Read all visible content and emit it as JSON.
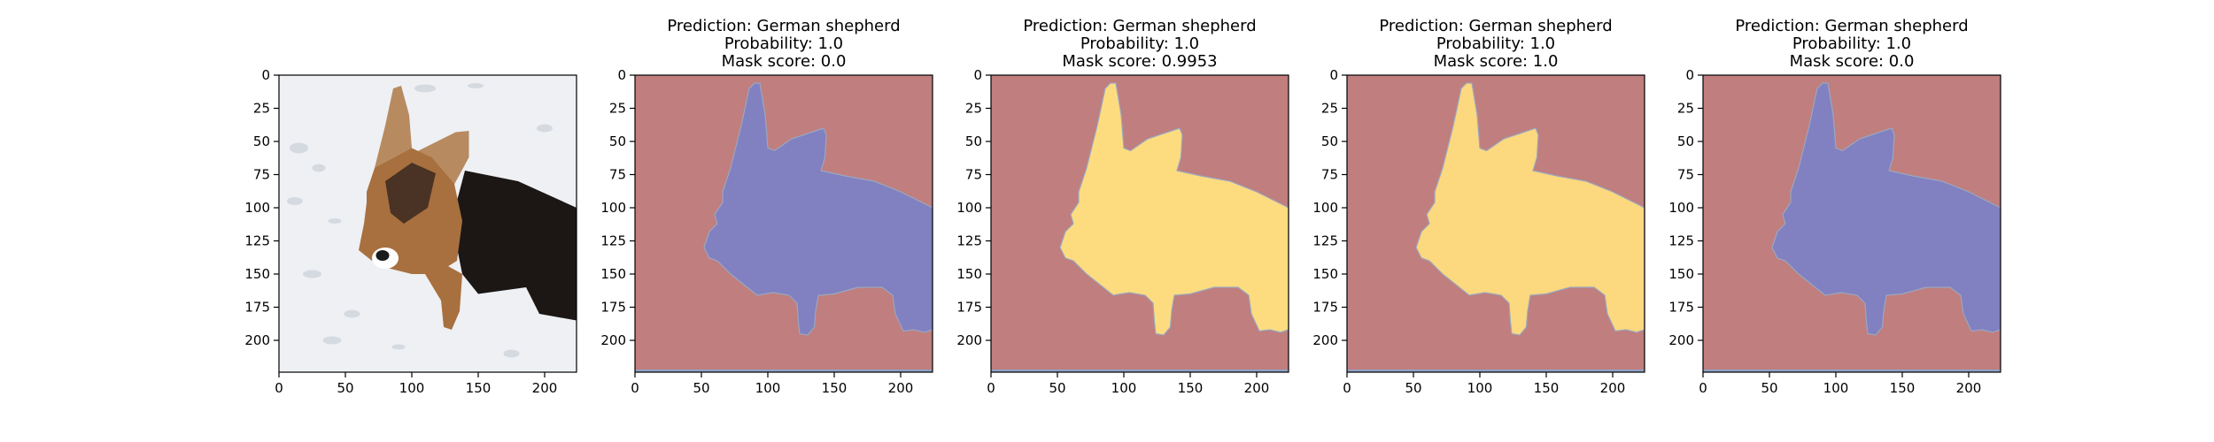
{
  "chart_data": [
    {
      "type": "image",
      "title_lines": [],
      "content": "photo",
      "xlim": [
        0,
        224
      ],
      "ylim": [
        224,
        0
      ],
      "xticks": [
        0,
        50,
        100,
        150,
        200
      ],
      "yticks": [
        0,
        25,
        50,
        75,
        100,
        125,
        150,
        175,
        200
      ]
    },
    {
      "type": "heatmap",
      "title_lines": [
        "Prediction: German shepherd",
        "Probability: 1.0",
        "Mask score: 0.0"
      ],
      "prediction": "German shepherd",
      "probability": 1.0,
      "mask_score": 0.0,
      "content": "mask",
      "background_color": "#c07e7e",
      "mask_color": "#8180c1",
      "xlim": [
        0,
        224
      ],
      "ylim": [
        224,
        0
      ],
      "xticks": [
        0,
        50,
        100,
        150,
        200
      ],
      "yticks": [
        0,
        25,
        50,
        75,
        100,
        125,
        150,
        175,
        200
      ]
    },
    {
      "type": "heatmap",
      "title_lines": [
        "Prediction: German shepherd",
        "Probability: 1.0",
        "Mask score: 0.9953"
      ],
      "prediction": "German shepherd",
      "probability": 1.0,
      "mask_score": 0.9953,
      "content": "mask",
      "background_color": "#c07e7e",
      "mask_color": "#fddc80",
      "xlim": [
        0,
        224
      ],
      "ylim": [
        224,
        0
      ],
      "xticks": [
        0,
        50,
        100,
        150,
        200
      ],
      "yticks": [
        0,
        25,
        50,
        75,
        100,
        125,
        150,
        175,
        200
      ]
    },
    {
      "type": "heatmap",
      "title_lines": [
        "Prediction: German shepherd",
        "Probability: 1.0",
        "Mask score: 1.0"
      ],
      "prediction": "German shepherd",
      "probability": 1.0,
      "mask_score": 1.0,
      "content": "mask",
      "background_color": "#c07e7e",
      "mask_color": "#fcd87e",
      "xlim": [
        0,
        224
      ],
      "ylim": [
        224,
        0
      ],
      "xticks": [
        0,
        50,
        100,
        150,
        200
      ],
      "yticks": [
        0,
        25,
        50,
        75,
        100,
        125,
        150,
        175,
        200
      ]
    },
    {
      "type": "heatmap",
      "title_lines": [
        "Prediction: German shepherd",
        "Probability: 1.0",
        "Mask score: 0.0"
      ],
      "prediction": "German shepherd",
      "probability": 1.0,
      "mask_score": 0.0,
      "content": "mask",
      "background_color": "#c07e7e",
      "mask_color": "#8180c1",
      "xlim": [
        0,
        224
      ],
      "ylim": [
        224,
        0
      ],
      "xticks": [
        0,
        50,
        100,
        150,
        200
      ],
      "yticks": [
        0,
        25,
        50,
        75,
        100,
        125,
        150,
        175,
        200
      ]
    }
  ],
  "photo_colors": {
    "snow": "#eef0f4",
    "shadow": "#d5d9e0",
    "fur_tan": "#a8703f",
    "fur_black": "#1c1714"
  }
}
